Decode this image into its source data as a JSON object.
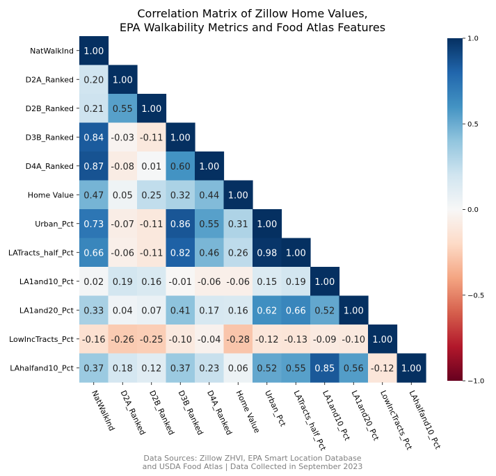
{
  "chart_data": {
    "type": "heatmap",
    "title": [
      "Correlation Matrix of Zillow Home Values,",
      "EPA Walkability Metrics and Food Atlas Features"
    ],
    "labels": [
      "NatWalkInd",
      "D2A_Ranked",
      "D2B_Ranked",
      "D3B_Ranked",
      "D4A_Ranked",
      "Home Value",
      "Urban_Pct",
      "LATracts_half_Pct",
      "LA1and10_Pct",
      "LA1and20_Pct",
      "LowIncTracts_Pct",
      "LAhalfand10_Pct"
    ],
    "matrix": [
      [
        1.0
      ],
      [
        0.2,
        1.0
      ],
      [
        0.21,
        0.55,
        1.0
      ],
      [
        0.84,
        -0.03,
        -0.11,
        1.0
      ],
      [
        0.87,
        -0.08,
        0.01,
        0.6,
        1.0
      ],
      [
        0.47,
        0.05,
        0.25,
        0.32,
        0.44,
        1.0
      ],
      [
        0.73,
        -0.07,
        -0.11,
        0.86,
        0.55,
        0.31,
        1.0
      ],
      [
        0.66,
        -0.06,
        -0.11,
        0.82,
        0.46,
        0.26,
        0.98,
        1.0
      ],
      [
        0.02,
        0.19,
        0.16,
        -0.01,
        -0.06,
        -0.06,
        0.15,
        0.19,
        1.0
      ],
      [
        0.33,
        0.04,
        0.07,
        0.41,
        0.17,
        0.16,
        0.62,
        0.66,
        0.52,
        1.0
      ],
      [
        -0.16,
        -0.26,
        -0.25,
        -0.1,
        -0.04,
        -0.28,
        -0.12,
        -0.13,
        -0.09,
        -0.1,
        1.0
      ],
      [
        0.37,
        0.18,
        0.12,
        0.37,
        0.23,
        0.06,
        0.52,
        0.55,
        0.85,
        0.56,
        -0.12,
        1.0
      ]
    ],
    "value_range": [
      -1,
      1
    ],
    "colormap": "RdBu",
    "colorbar_ticks": [
      "1.0",
      "0.5",
      "0.0",
      "−0.5",
      "−1.0"
    ],
    "colorbar_tick_values": [
      1.0,
      0.5,
      0.0,
      -0.5,
      -1.0
    ],
    "mask": "upper-triangle",
    "source": [
      "Data Sources: Zillow ZHVI, EPA Smart Location Database",
      "and USDA Food Atlas | Data Collected in September 2023"
    ]
  }
}
